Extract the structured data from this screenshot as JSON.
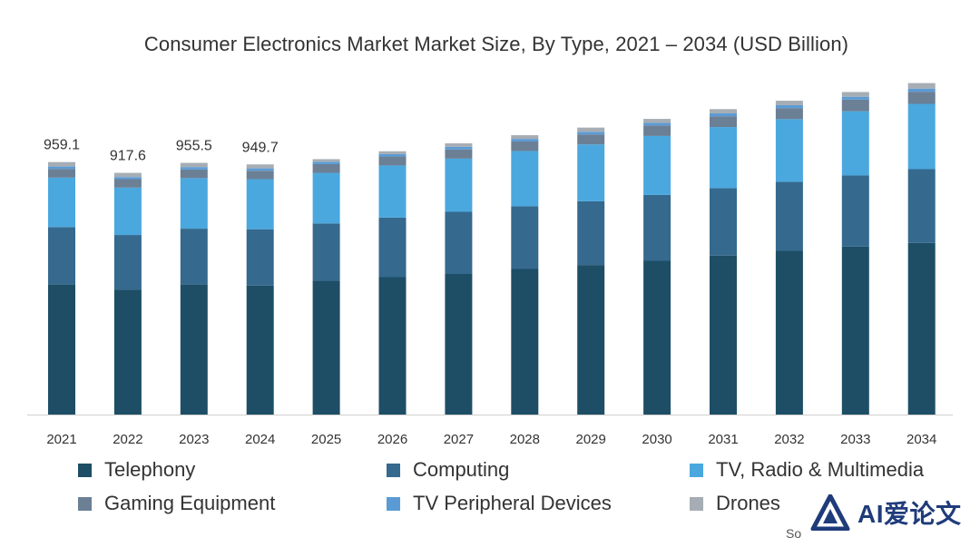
{
  "chart_data": {
    "type": "bar",
    "stacked": true,
    "title": "Consumer Electronics Market Market Size, By Type, 2021 – 2034 (USD Billion)",
    "categories": [
      "2021",
      "2022",
      "2023",
      "2024",
      "2025",
      "2026",
      "2027",
      "2028",
      "2029",
      "2030",
      "2031",
      "2032",
      "2033",
      "2034"
    ],
    "series": [
      {
        "name": "Telephony",
        "color": "#1d4e66",
        "values": [
          494,
          474,
          494,
          490,
          508,
          522,
          534,
          553,
          568,
          584,
          604,
          622,
          638,
          652
        ]
      },
      {
        "name": "Computing",
        "color": "#35698e",
        "values": [
          218,
          208,
          212,
          214,
          218,
          226,
          236,
          238,
          242,
          250,
          256,
          262,
          270,
          280
        ]
      },
      {
        "name": "TV, Radio & Multimedia",
        "color": "#4aa8de",
        "values": [
          188,
          180,
          192,
          190,
          192,
          198,
          202,
          210,
          216,
          224,
          232,
          238,
          244,
          248
        ]
      },
      {
        "name": "Gaming Equipment",
        "color": "#6b7f95",
        "values": [
          33,
          32,
          33,
          32,
          33,
          34,
          35,
          36,
          38,
          40,
          41,
          42,
          44,
          46
        ]
      },
      {
        "name": "TV Peripheral Devices",
        "color": "#5b9bd5",
        "values": [
          9,
          8,
          9,
          9,
          9,
          9,
          10,
          10,
          10,
          10,
          11,
          11,
          11,
          12
        ]
      },
      {
        "name": "Drones",
        "color": "#a6adb4",
        "values": [
          17,
          16,
          16,
          15,
          10,
          11,
          13,
          14,
          16,
          15,
          16,
          17,
          18,
          21
        ]
      }
    ],
    "totals_labels": [
      "959.1",
      "917.6",
      "955.5",
      "949.7",
      "",
      "",
      "",
      "",
      "",
      "",
      "",
      "",
      "",
      ""
    ],
    "ylim": [
      0,
      1230
    ],
    "grid": false,
    "legend_position": "bottom"
  },
  "watermark": {
    "text": "AI爱论文"
  },
  "source_fragment": "So"
}
